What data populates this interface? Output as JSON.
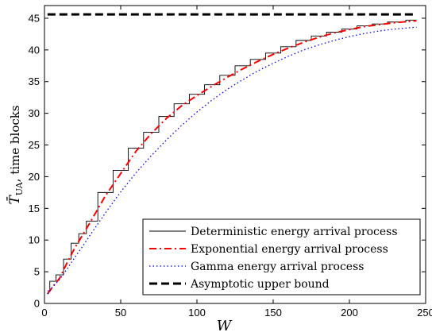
{
  "chart_data": {
    "type": "line",
    "xlabel": "W",
    "ylabel": "T̄UA, time blocks",
    "ylabel_parts": {
      "symbol": "T̄",
      "subscript": "UA",
      "rest": ", time blocks"
    },
    "xlim": [
      0,
      250
    ],
    "ylim": [
      0,
      47
    ],
    "xticks": [
      "0",
      "50",
      "100",
      "150",
      "200",
      "250"
    ],
    "yticks": [
      "0",
      "5",
      "10",
      "15",
      "20",
      "25",
      "30",
      "35",
      "40",
      "45"
    ],
    "grid": false,
    "legend_position": "bottom-right",
    "series": [
      {
        "name": "Deterministic energy arrival process",
        "color": "#000000",
        "style": "solid-stepped",
        "x": [
          2,
          5,
          10,
          15,
          20,
          25,
          30,
          40,
          50,
          60,
          70,
          80,
          90,
          100,
          110,
          120,
          130,
          140,
          150,
          160,
          170,
          180,
          190,
          200,
          210,
          220,
          230,
          244
        ],
        "y": [
          2,
          3.5,
          4.5,
          7,
          9.5,
          11,
          13,
          17.5,
          21,
          24.5,
          27,
          29.5,
          31.5,
          33,
          34.5,
          36,
          37.5,
          38.5,
          39.5,
          40.5,
          41.5,
          42.2,
          42.8,
          43.3,
          43.8,
          44.1,
          44.4,
          44.7
        ]
      },
      {
        "name": "Exponential energy arrival process",
        "color": "#ff0000",
        "style": "dash-dot",
        "x": [
          2,
          5,
          10,
          15,
          20,
          25,
          30,
          40,
          50,
          60,
          70,
          80,
          90,
          100,
          110,
          120,
          130,
          140,
          150,
          160,
          170,
          180,
          190,
          200,
          210,
          220,
          230,
          244
        ],
        "y": [
          1.5,
          2.5,
          4,
          6.5,
          8.8,
          10.8,
          12.8,
          17,
          20.5,
          24,
          26.8,
          29.2,
          31.2,
          32.8,
          34.3,
          35.7,
          37,
          38.2,
          39.3,
          40.3,
          41.2,
          42,
          42.7,
          43.2,
          43.7,
          44,
          44.3,
          44.6
        ]
      },
      {
        "name": "Gamma energy arrival process",
        "color": "#0000ff",
        "style": "dotted",
        "x": [
          2,
          5,
          10,
          15,
          20,
          25,
          30,
          40,
          50,
          60,
          70,
          80,
          90,
          100,
          110,
          120,
          130,
          140,
          150,
          160,
          170,
          180,
          190,
          200,
          210,
          220,
          230,
          244
        ],
        "y": [
          1.5,
          2.5,
          3.8,
          5.5,
          7.3,
          9,
          10.8,
          14.3,
          17.6,
          20.6,
          23.3,
          25.8,
          28.1,
          30.2,
          32.1,
          33.8,
          35.3,
          36.7,
          37.9,
          39,
          40,
          40.8,
          41.5,
          42.1,
          42.6,
          43,
          43.3,
          43.6
        ]
      },
      {
        "name": "Asymptotic upper bound",
        "color": "#000000",
        "style": "dashed",
        "x": [
          2,
          244
        ],
        "y": [
          45.6,
          45.6
        ]
      }
    ]
  }
}
